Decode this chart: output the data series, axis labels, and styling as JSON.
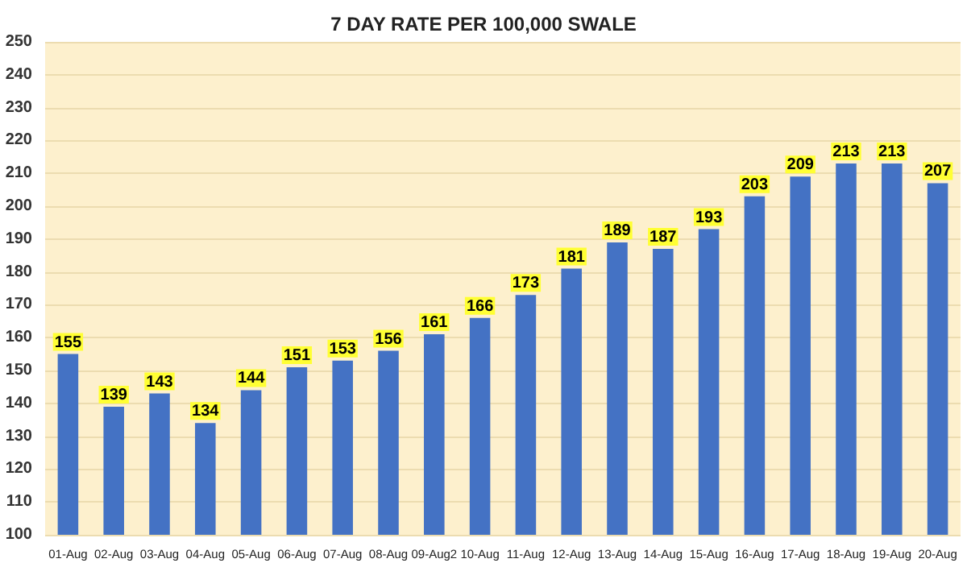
{
  "chart_data": {
    "type": "bar",
    "title": "7 DAY RATE PER 100,000 SWALE",
    "categories": [
      "01-Aug",
      "02-Aug",
      "03-Aug",
      "04-Aug",
      "05-Aug",
      "06-Aug",
      "07-Aug",
      "08-Aug",
      "09-Aug2",
      "10-Aug",
      "11-Aug",
      "12-Aug",
      "13-Aug",
      "14-Aug",
      "15-Aug",
      "16-Aug",
      "17-Aug",
      "18-Aug",
      "19-Aug",
      "20-Aug"
    ],
    "values": [
      155,
      139,
      143,
      134,
      144,
      151,
      153,
      156,
      161,
      166,
      173,
      181,
      189,
      187,
      193,
      203,
      209,
      213,
      213,
      207
    ],
    "color": "#4472c4",
    "ylim": [
      100,
      250
    ],
    "yticks": [
      100,
      110,
      120,
      130,
      140,
      150,
      160,
      170,
      180,
      190,
      200,
      210,
      220,
      230,
      240,
      250
    ],
    "grid": "y",
    "data_labels": true
  }
}
